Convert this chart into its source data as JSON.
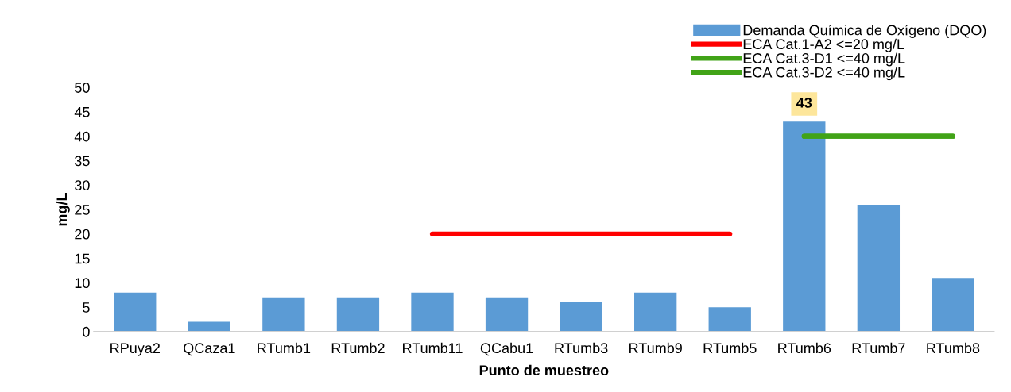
{
  "chart_data": {
    "type": "bar",
    "xlabel": "Punto de muestreo",
    "ylabel": "mg/L",
    "categories": [
      "RPuya2",
      "QCaza1",
      "RTumb1",
      "RTumb2",
      "RTumb11",
      "QCabu1",
      "RTumb3",
      "RTumb9",
      "RTumb5",
      "RTumb6",
      "RTumb7",
      "RTumb8"
    ],
    "series": [
      {
        "name": "Demanda Química de Oxígeno (DQO)",
        "color": "#5b9bd5",
        "values": [
          8,
          2,
          7,
          7,
          8,
          7,
          6,
          8,
          5,
          43,
          26,
          11
        ],
        "value_labels": [
          null,
          null,
          null,
          null,
          null,
          null,
          null,
          null,
          null,
          "43",
          null,
          null
        ]
      },
      {
        "name": "ECA Cat.1-A2 <=20 mg/L",
        "type": "line",
        "color": "#ff0000",
        "values": [
          null,
          null,
          null,
          null,
          20,
          20,
          20,
          20,
          20,
          null,
          null,
          null
        ]
      },
      {
        "name": "ECA Cat.3-D1 <=40 mg/L",
        "type": "line",
        "color": "#41a317",
        "values": [
          null,
          null,
          null,
          null,
          null,
          null,
          null,
          null,
          null,
          40,
          40,
          40
        ]
      },
      {
        "name": "ECA Cat.3-D2 <=40 mg/L",
        "type": "line",
        "color": "#41a317",
        "values": [
          null,
          null,
          null,
          null,
          null,
          null,
          null,
          null,
          null,
          40,
          40,
          40
        ]
      }
    ],
    "ylim": [
      0,
      50
    ],
    "yticks": [
      0,
      5,
      10,
      15,
      20,
      25,
      30,
      35,
      40,
      45,
      50
    ],
    "grid": false,
    "legend": "top right",
    "marker": "none",
    "line_style": "solid"
  }
}
